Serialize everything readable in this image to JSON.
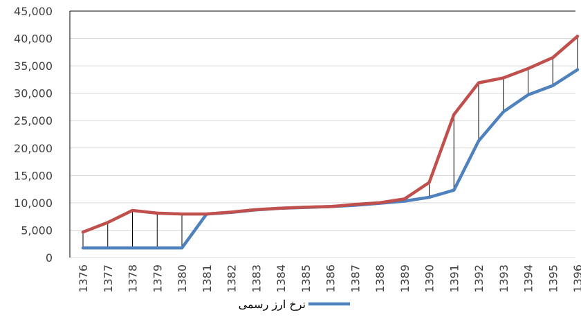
{
  "chart_data": {
    "type": "line",
    "title": "",
    "xlabel": "",
    "ylabel": "",
    "categories": [
      "1376",
      "1377",
      "1378",
      "1379",
      "1380",
      "1381",
      "1382",
      "1383",
      "1384",
      "1385",
      "1386",
      "1387",
      "1388",
      "1389",
      "1390",
      "1391",
      "1392",
      "1393",
      "1394",
      "1395",
      "1396"
    ],
    "ylim": [
      0,
      45000
    ],
    "yticks": [
      0,
      5000,
      10000,
      15000,
      20000,
      25000,
      30000,
      35000,
      40000,
      45000
    ],
    "ytick_labels": [
      "0",
      "5,000",
      "10,000",
      "15,000",
      "20,000",
      "25,000",
      "30,000",
      "35,000",
      "40,000",
      "45,000"
    ],
    "grid": true,
    "legend_position": "bottom",
    "drop_lines": true,
    "series": [
      {
        "name": "نرخ ارز رسمی",
        "color": "#4f81bd",
        "values": [
          1750,
          1750,
          1750,
          1750,
          1750,
          7950,
          8250,
          8700,
          9000,
          9150,
          9300,
          9550,
          9900,
          10300,
          11000,
          12300,
          21300,
          26600,
          29700,
          31400,
          34300
        ]
      },
      {
        "name": "",
        "color": "#c0504d",
        "values": [
          4650,
          6400,
          8600,
          8100,
          7950,
          7950,
          8300,
          8750,
          9000,
          9200,
          9300,
          9700,
          10000,
          10700,
          13700,
          26100,
          31900,
          32800,
          34500,
          36500,
          40400
        ]
      }
    ]
  }
}
